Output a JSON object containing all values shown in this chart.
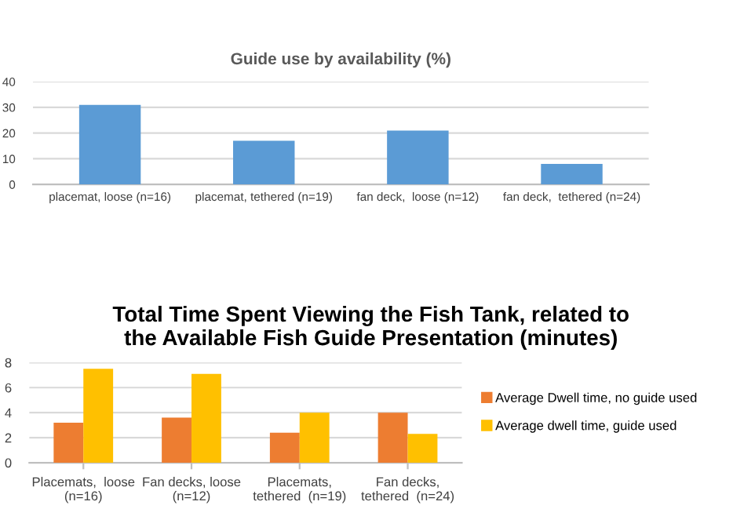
{
  "chart_data": [
    {
      "type": "bar",
      "title": "Guide use by availability (%)",
      "categories": [
        "placemat, loose (n=16)",
        "placemat, tethered (n=19)",
        "fan deck,  loose (n=12)",
        "fan deck,  tethered (n=24)"
      ],
      "values": [
        31,
        17,
        21,
        8
      ],
      "color": "#5b9bd5",
      "ylim": [
        0,
        40
      ],
      "yticks": [
        0,
        10,
        20,
        30,
        40
      ],
      "grid": "y",
      "legend": false
    },
    {
      "type": "bar",
      "title": "Total Time Spent Viewing the Fish Tank, related to\nthe Available Fish Guide Presentation (minutes)",
      "categories": [
        "Placemats,  loose\n(n=16)",
        "Fan decks, loose\n(n=12)",
        "Placemats,\ntethered  (n=19)",
        "Fan decks,\ntethered  (n=24)"
      ],
      "series": [
        {
          "name": "Average Dwell time, no guide used",
          "color": "#ed7d31",
          "values": [
            3.2,
            3.6,
            2.4,
            4.0
          ]
        },
        {
          "name": "Average dwell time, guide used",
          "color": "#ffc000",
          "values": [
            7.5,
            7.1,
            4.0,
            2.3
          ]
        }
      ],
      "ylim": [
        0,
        8
      ],
      "yticks": [
        0,
        2,
        4,
        6,
        8
      ],
      "grid": "y",
      "legend": "right"
    }
  ]
}
